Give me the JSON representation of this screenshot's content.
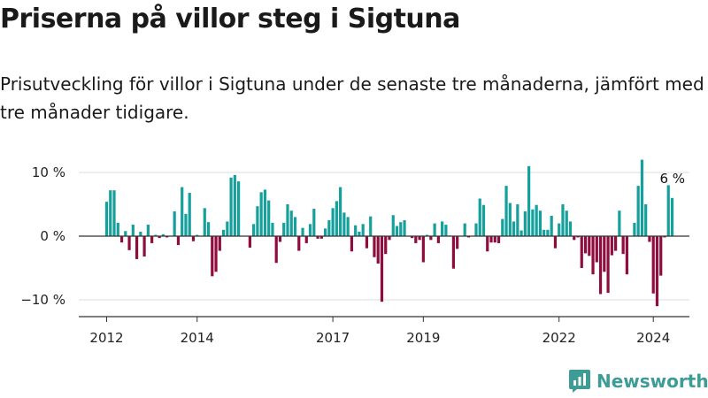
{
  "header": {
    "title": "Priserna på villor steg i Sigtuna",
    "subtitle": "Prisutveckling för villor i Sigtuna under de senaste tre månaderna, jämfört med tre månader tidigare."
  },
  "brand": {
    "name": "Newsworthy"
  },
  "colors": {
    "positive": "#16a09c",
    "negative": "#8f0c3f",
    "grid": "#dddddd",
    "axis": "#333333",
    "brand": "#3d9c95"
  },
  "chart_data": {
    "type": "bar",
    "title": "Priserna på villor steg i Sigtuna",
    "ylabel": "",
    "xlabel": "",
    "unit": "%",
    "ylim": [
      -12,
      12
    ],
    "yticks": [
      {
        "value": 10,
        "label": "10 %"
      },
      {
        "value": 0,
        "label": "0 %"
      },
      {
        "value": -10,
        "label": "−10 %"
      }
    ],
    "xticks": [
      {
        "index": 0,
        "label": "2012"
      },
      {
        "index": 24,
        "label": "2014"
      },
      {
        "index": 60,
        "label": "2017"
      },
      {
        "index": 84,
        "label": "2019"
      },
      {
        "index": 120,
        "label": "2022"
      },
      {
        "index": 145,
        "label": "2024"
      }
    ],
    "annotation": {
      "index": 150,
      "label": "6 %"
    },
    "start": "2012-01",
    "values": [
      5.4,
      7.2,
      7.2,
      2.1,
      -1.0,
      0.8,
      -2.2,
      1.8,
      -3.6,
      0.7,
      -3.2,
      1.8,
      -1.1,
      0.2,
      -0.3,
      0.3,
      -0.2,
      0.0,
      3.9,
      -1.4,
      7.7,
      3.5,
      6.8,
      -0.8,
      0.2,
      0.0,
      4.4,
      2.2,
      -6.3,
      -5.6,
      -2.3,
      1.0,
      2.3,
      9.2,
      9.6,
      8.6,
      0.0,
      0.0,
      -1.8,
      1.9,
      4.7,
      6.9,
      7.3,
      5.6,
      2.1,
      -4.2,
      -0.9,
      2.1,
      5.0,
      4.0,
      3.0,
      -2.3,
      1.3,
      -1.1,
      1.9,
      4.3,
      -0.4,
      -0.4,
      1.2,
      2.5,
      4.4,
      5.5,
      7.7,
      3.7,
      3.0,
      -2.4,
      1.7,
      0.7,
      1.9,
      -1.9,
      3.1,
      -3.3,
      -4.3,
      -10.3,
      -2.8,
      -0.6,
      3.3,
      1.6,
      2.2,
      2.5,
      0.0,
      -0.3,
      -1.1,
      -0.6,
      -4.1,
      0.2,
      -0.6,
      2.0,
      -1.1,
      2.3,
      1.8,
      0.1,
      -5.1,
      -2.0,
      0.0,
      2.0,
      -0.2,
      0.0,
      2.0,
      5.9,
      4.9,
      -2.4,
      -1.0,
      -1.0,
      -1.1,
      2.7,
      7.9,
      5.2,
      2.3,
      5.0,
      0.9,
      3.9,
      11.0,
      4.2,
      4.9,
      4.0,
      1.0,
      1.0,
      3.2,
      -1.9,
      2.0,
      5.0,
      4.0,
      2.3,
      -0.6,
      -0.2,
      -5.0,
      -2.7,
      -3.1,
      -6.0,
      -4.1,
      -9.1,
      -5.6,
      -8.9,
      -3.0,
      -2.3,
      4.0,
      -2.8,
      -6.0,
      0.0,
      2.1,
      7.9,
      12.0,
      5.0,
      -0.9,
      -9.0,
      -11.0,
      -6.2,
      -0.2,
      8.0,
      6.0
    ]
  }
}
